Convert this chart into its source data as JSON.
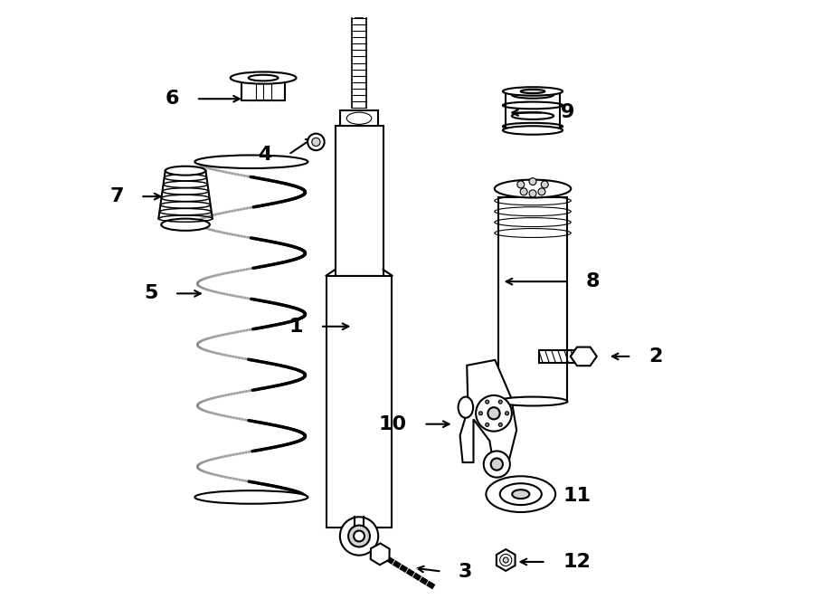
{
  "bg_color": "#ffffff",
  "line_color": "#000000",
  "line_width": 1.5,
  "font_size": 16
}
